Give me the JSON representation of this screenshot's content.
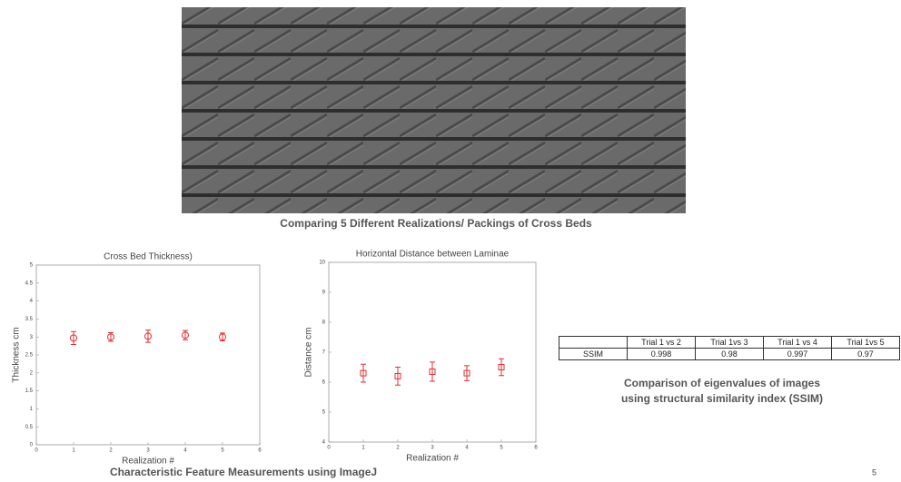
{
  "chart_data": [
    {
      "type": "errorbar",
      "title": "Cross Bed Thickness)",
      "xlabel": "Realization #",
      "ylabel": "Thickness cm",
      "x": [
        1,
        2,
        3,
        4,
        5
      ],
      "values": [
        2.97,
        3.0,
        3.02,
        3.05,
        3.0
      ],
      "errors": [
        0.18,
        0.12,
        0.17,
        0.13,
        0.11
      ],
      "marker": "circle",
      "color": "#e03030",
      "xlim": [
        0,
        6
      ],
      "xticks": [
        0,
        1,
        2,
        3,
        4,
        5,
        6
      ],
      "ylim": [
        0,
        5
      ],
      "yticks": [
        0,
        0.5,
        1,
        1.5,
        2,
        2.5,
        3,
        3.5,
        4,
        4.5,
        5
      ]
    },
    {
      "type": "errorbar",
      "title": "Horizontal Distance between Laminae",
      "xlabel": "Realization #",
      "ylabel": "Distance cm",
      "x": [
        1,
        2,
        3,
        4,
        5
      ],
      "values": [
        6.3,
        6.2,
        6.35,
        6.3,
        6.5
      ],
      "errors": [
        0.3,
        0.3,
        0.32,
        0.25,
        0.28
      ],
      "marker": "square",
      "color": "#e03030",
      "xlim": [
        0,
        6
      ],
      "xticks": [
        0,
        1,
        2,
        3,
        4,
        5,
        6
      ],
      "ylim": [
        4,
        10
      ],
      "yticks": [
        4,
        5,
        6,
        7,
        8,
        9,
        10
      ]
    }
  ],
  "image_caption": "Comparing 5 Different Realizations/ Packings of Cross Beds",
  "table": {
    "columns": [
      "Trial 1 vs 2",
      "Trial 1vs 3",
      "Trial 1 vs 4",
      "Trial 1vs 5"
    ],
    "rows": [
      {
        "label": "SSIM",
        "values": [
          0.998,
          0.98,
          0.997,
          0.97
        ]
      }
    ]
  },
  "table_caption": [
    "Comparison of eigenvalues of images",
    "using structural similarity index (SSIM)"
  ],
  "footer_caption": "Characteristic Feature Measurements using ImageJ",
  "page_number": "5"
}
